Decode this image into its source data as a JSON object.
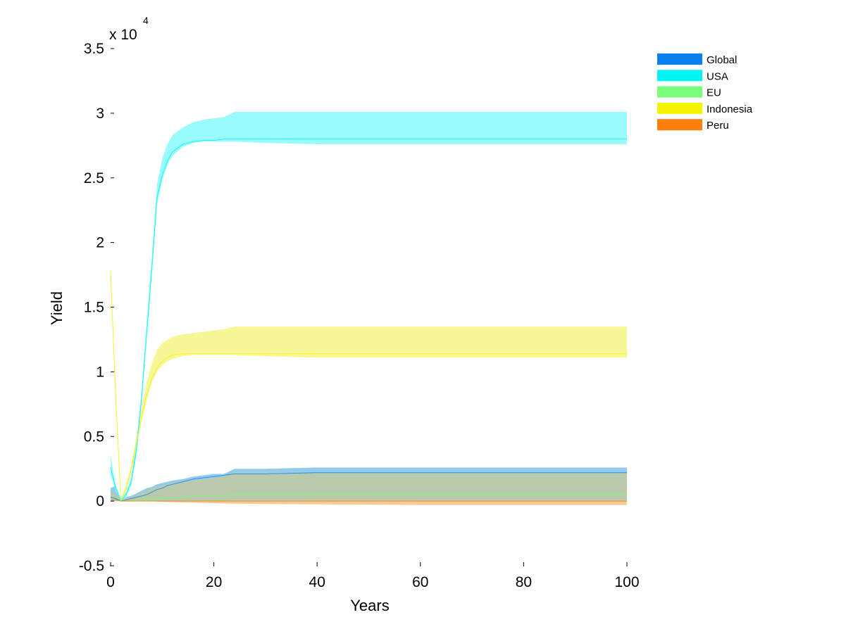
{
  "chart_data": {
    "type": "area",
    "xlabel": "Years",
    "ylabel": "Yield",
    "y_exponent_label": "x 10",
    "y_exponent_power": "4",
    "xlim": [
      0,
      100
    ],
    "ylim": [
      -0.5,
      3.5
    ],
    "x_ticks": [
      0,
      20,
      40,
      60,
      80,
      100
    ],
    "x_tick_labels": [
      "0",
      "20",
      "40",
      "60",
      "80",
      "100"
    ],
    "y_ticks": [
      -0.5,
      0,
      0.5,
      1,
      1.5,
      2,
      2.5,
      3,
      3.5
    ],
    "y_tick_labels": [
      "-0.5",
      "0",
      "0.5",
      "1",
      "1.5",
      "2",
      "2.5",
      "3",
      "3.5"
    ],
    "grid": false,
    "legend_position": "top-right",
    "x": [
      0,
      1,
      2,
      3,
      4,
      5,
      6,
      7,
      8,
      9,
      10,
      11,
      12,
      14,
      16,
      18,
      20,
      22,
      24,
      30,
      40,
      60,
      80,
      100
    ],
    "series": [
      {
        "name": "Global",
        "color": "#0a7ff0",
        "band_color": "#8dc8ee",
        "mean": [
          0.03,
          0.02,
          0.0,
          0.01,
          0.02,
          0.03,
          0.04,
          0.05,
          0.07,
          0.09,
          0.1,
          0.12,
          0.13,
          0.15,
          0.17,
          0.18,
          0.19,
          0.2,
          0.21,
          0.21,
          0.22,
          0.22,
          0.22,
          0.22
        ],
        "upper": [
          0.1,
          0.12,
          0.02,
          0.03,
          0.04,
          0.06,
          0.08,
          0.1,
          0.11,
          0.13,
          0.14,
          0.15,
          0.16,
          0.17,
          0.19,
          0.2,
          0.21,
          0.21,
          0.25,
          0.25,
          0.26,
          0.26,
          0.26,
          0.26
        ],
        "lower": [
          0.0,
          0.0,
          0.0,
          0.0,
          0.0,
          0.0,
          0.0,
          0.0,
          0.0,
          0.0,
          0.0,
          0.0,
          0.0,
          0.0,
          0.0,
          0.0,
          0.0,
          0.0,
          0.0,
          0.0,
          0.0,
          0.0,
          0.0,
          0.0
        ]
      },
      {
        "name": "USA",
        "color": "#00f4f4",
        "band_color": "#93fbfb",
        "mean": [
          0.26,
          0.1,
          0.0,
          0.05,
          0.15,
          0.4,
          0.8,
          1.3,
          1.8,
          2.35,
          2.52,
          2.63,
          2.7,
          2.76,
          2.78,
          2.79,
          2.79,
          2.8,
          2.8,
          2.8,
          2.8,
          2.8,
          2.8,
          2.8
        ],
        "upper": [
          0.35,
          0.12,
          0.02,
          0.07,
          0.18,
          0.45,
          0.85,
          1.4,
          1.9,
          2.45,
          2.65,
          2.76,
          2.83,
          2.89,
          2.93,
          2.95,
          2.96,
          2.97,
          3.01,
          3.01,
          3.01,
          3.01,
          3.01,
          3.01
        ],
        "lower": [
          0.2,
          0.08,
          0.0,
          0.03,
          0.12,
          0.35,
          0.75,
          1.25,
          1.75,
          2.3,
          2.48,
          2.6,
          2.67,
          2.74,
          2.77,
          2.78,
          2.78,
          2.78,
          2.78,
          2.77,
          2.76,
          2.76,
          2.76,
          2.76
        ]
      },
      {
        "name": "EU",
        "color": "#7cfc7c",
        "band_color": "#bfc9a0",
        "mean": [
          0.02,
          0.01,
          0.0,
          0.0,
          0.0,
          0.01,
          0.01,
          0.02,
          0.02,
          0.02,
          0.02,
          0.03,
          0.03,
          0.03,
          0.04,
          0.04,
          0.04,
          0.04,
          0.05,
          0.05,
          0.05,
          0.05,
          0.05,
          0.05
        ],
        "upper": [
          0.08,
          0.05,
          0.02,
          0.02,
          0.03,
          0.05,
          0.06,
          0.08,
          0.1,
          0.11,
          0.12,
          0.13,
          0.14,
          0.15,
          0.16,
          0.17,
          0.18,
          0.19,
          0.22,
          0.22,
          0.22,
          0.22,
          0.22,
          0.22
        ],
        "lower": [
          0.0,
          0.0,
          0.0,
          0.0,
          0.0,
          0.0,
          0.0,
          0.0,
          0.0,
          0.0,
          0.0,
          0.0,
          0.0,
          0.0,
          0.0,
          0.0,
          0.0,
          0.0,
          0.0,
          0.0,
          0.0,
          0.0,
          0.0,
          0.0
        ]
      },
      {
        "name": "Indonesia",
        "color": "#f4f400",
        "band_color": "#f8f791",
        "mean": [
          1.78,
          0.8,
          0.0,
          0.1,
          0.25,
          0.45,
          0.65,
          0.82,
          0.95,
          1.03,
          1.08,
          1.11,
          1.13,
          1.14,
          1.14,
          1.14,
          1.14,
          1.14,
          1.14,
          1.14,
          1.14,
          1.14,
          1.14,
          1.14
        ],
        "upper": [
          1.8,
          0.85,
          0.02,
          0.12,
          0.28,
          0.5,
          0.72,
          0.92,
          1.07,
          1.17,
          1.22,
          1.25,
          1.27,
          1.29,
          1.3,
          1.31,
          1.32,
          1.33,
          1.35,
          1.35,
          1.35,
          1.35,
          1.35,
          1.35
        ],
        "lower": [
          1.7,
          0.75,
          0.0,
          0.08,
          0.22,
          0.42,
          0.62,
          0.78,
          0.92,
          1.0,
          1.05,
          1.08,
          1.1,
          1.12,
          1.13,
          1.13,
          1.13,
          1.13,
          1.13,
          1.12,
          1.11,
          1.11,
          1.11,
          1.11
        ]
      },
      {
        "name": "Peru",
        "color": "#ff7f0e",
        "band_color": "#f7c78e",
        "mean": [
          0.01,
          0.01,
          0.0,
          0.0,
          0.0,
          0.0,
          0.0,
          0.0,
          0.0,
          0.0,
          0.0,
          0.0,
          0.0,
          0.0,
          0.0,
          0.0,
          0.0,
          0.0,
          0.0,
          0.0,
          0.0,
          0.0,
          0.0,
          0.0
        ],
        "upper": [
          0.03,
          0.02,
          0.01,
          0.01,
          0.01,
          0.01,
          0.01,
          0.01,
          0.01,
          0.01,
          0.01,
          0.01,
          0.01,
          0.01,
          0.01,
          0.01,
          0.01,
          0.01,
          0.01,
          0.01,
          0.01,
          0.01,
          0.01,
          0.01
        ],
        "lower": [
          0.0,
          0.0,
          0.0,
          0.0,
          0.0,
          0.0,
          0.0,
          0.0,
          0.0,
          -0.005,
          -0.005,
          -0.007,
          -0.008,
          -0.01,
          -0.012,
          -0.014,
          -0.016,
          -0.018,
          -0.02,
          -0.022,
          -0.025,
          -0.03,
          -0.03,
          -0.03
        ]
      }
    ]
  }
}
